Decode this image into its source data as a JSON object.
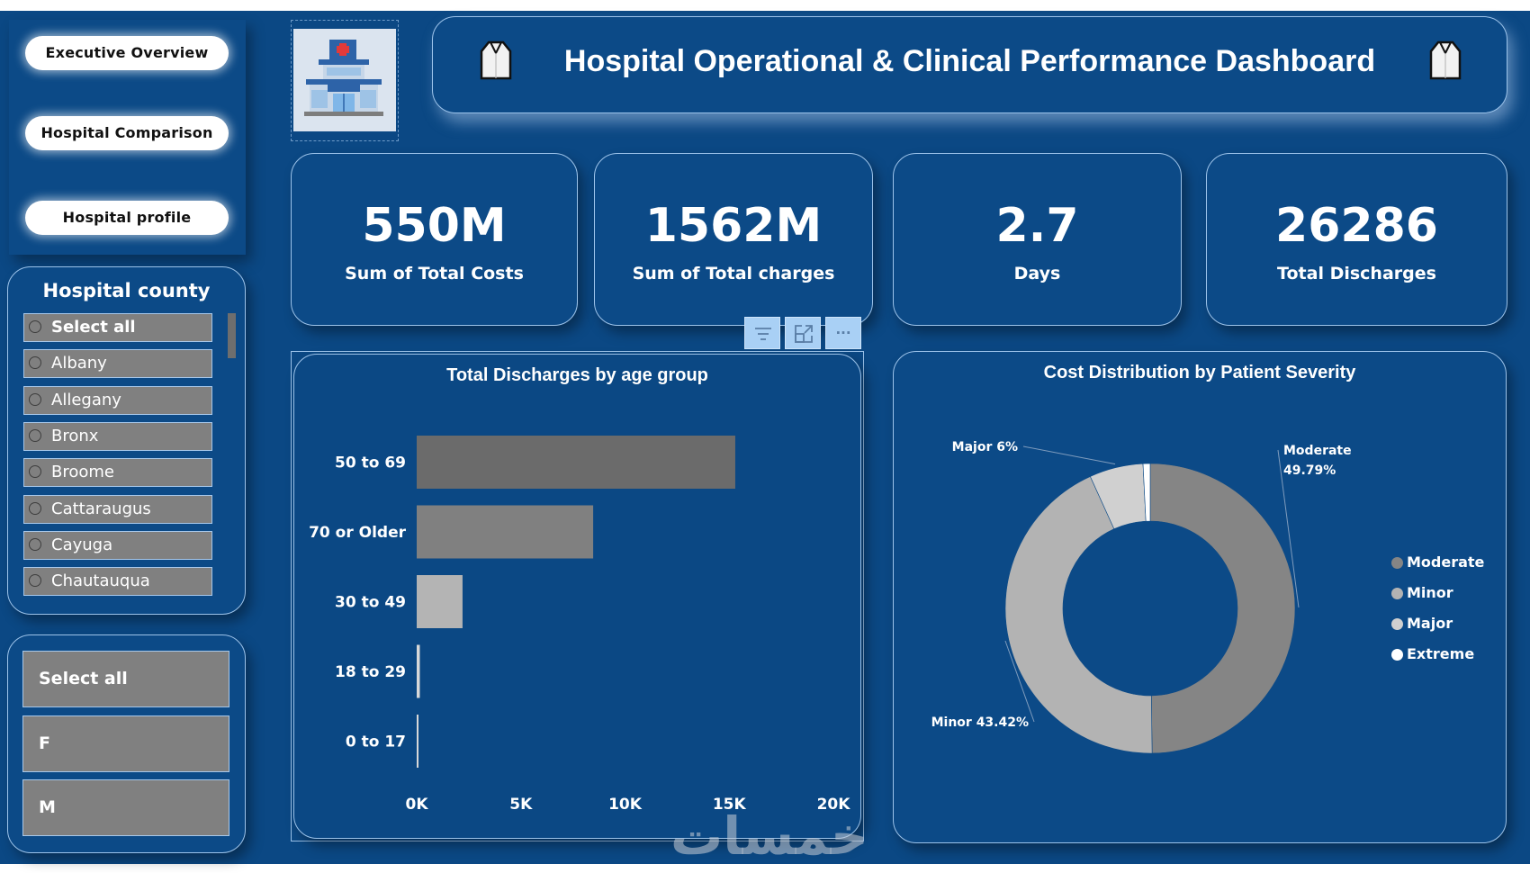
{
  "nav": {
    "buttons": [
      "Executive Overview",
      "Hospital Comparison",
      "Hospital profile"
    ]
  },
  "county_slicer": {
    "title": "Hospital county",
    "items": [
      "Select all",
      "Albany",
      "Allegany",
      "Bronx",
      "Broome",
      "Cattaraugus",
      "Cayuga",
      "Chautauqua"
    ]
  },
  "gender_slicer": {
    "items": [
      "Select all",
      "F",
      "M"
    ]
  },
  "header": {
    "title": "Hospital Operational & Clinical Performance Dashboard",
    "left_icon": "lab-coat-icon",
    "right_icon": "lab-coat-icon",
    "logo": "hospital-building-icon"
  },
  "kpis": [
    {
      "value": "550M",
      "label": "Sum of Total Costs"
    },
    {
      "value": "1562M",
      "label": "Sum of Total charges"
    },
    {
      "value": "2.7",
      "label": "Days"
    },
    {
      "value": "26286",
      "label": "Total Discharges"
    }
  ],
  "visual_header": {
    "icons": [
      "filter-icon",
      "focus-mode-icon",
      "more-options-icon"
    ],
    "more_label": "···"
  },
  "colors": {
    "background": "#0b4884",
    "card_border": "#9cc3ea",
    "bar_dark": "#6b6b6b",
    "bar_mid": "#808080",
    "bar_light": "#b4b4b4",
    "moderate": "#858585",
    "minor": "#b3b3b3",
    "major": "#d0d0d0",
    "extreme": "#ffffff"
  },
  "watermark": "خمسات",
  "chart_data": [
    {
      "type": "bar",
      "orientation": "horizontal",
      "title": "Total Discharges by age group",
      "categories": [
        "50 to 69",
        "70 or Older",
        "30 to 49",
        "18 to 29",
        "0 to 17"
      ],
      "values": [
        15290,
        8470,
        2200,
        150,
        60
      ],
      "xlabel": "",
      "ylabel": "",
      "xlim": [
        0,
        20000
      ],
      "xticks": [
        0,
        5000,
        10000,
        15000,
        20000
      ],
      "xtick_labels": [
        "0K",
        "5K",
        "10K",
        "15K",
        "20K"
      ],
      "grid": false
    },
    {
      "type": "pie",
      "donut": true,
      "title": "Cost Distribution by Patient Severity",
      "categories": [
        "Moderate",
        "Minor",
        "Major",
        "Extreme"
      ],
      "values": [
        49.79,
        43.42,
        6.0,
        0.79
      ],
      "data_labels": [
        "Moderate 49.79%",
        "Minor 43.42%",
        "Major 6%",
        ""
      ],
      "legend": [
        "Moderate",
        "Minor",
        "Major",
        "Extreme"
      ],
      "legend_position": "right"
    }
  ]
}
